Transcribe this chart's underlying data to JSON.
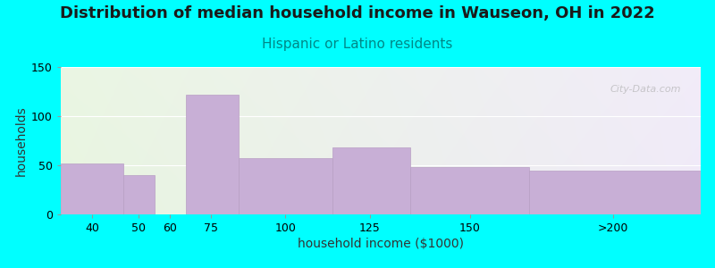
{
  "title": "Distribution of median household income in Wauseon, OH in 2022",
  "subtitle": "Hispanic or Latino residents",
  "xlabel": "household income ($1000)",
  "ylabel": "households",
  "background_color": "#00FFFF",
  "bar_color": "#c8afd6",
  "bar_edge_color": "#b89fc4",
  "categories": [
    "40",
    "50",
    "60",
    "75",
    "100",
    "125",
    "150",
    ">200"
  ],
  "values": [
    52,
    40,
    0,
    122,
    57,
    68,
    48,
    45
  ],
  "bar_left_edges": [
    25,
    45,
    55,
    65,
    82,
    112,
    137,
    175
  ],
  "bar_right_edges": [
    45,
    55,
    65,
    82,
    112,
    137,
    175,
    230
  ],
  "tick_positions": [
    35,
    50,
    60,
    73,
    97,
    124,
    156,
    202
  ],
  "xticklabels": [
    "40",
    "50",
    "60",
    "75",
    "100",
    "125",
    "150",
    ">200"
  ],
  "xlim": [
    25,
    230
  ],
  "ylim": [
    0,
    150
  ],
  "yticks": [
    0,
    50,
    100,
    150
  ],
  "title_fontsize": 13,
  "subtitle_fontsize": 11,
  "title_color": "#1a1a1a",
  "subtitle_color": "#008888",
  "axis_label_fontsize": 10,
  "tick_fontsize": 9,
  "watermark": "City-Data.com"
}
